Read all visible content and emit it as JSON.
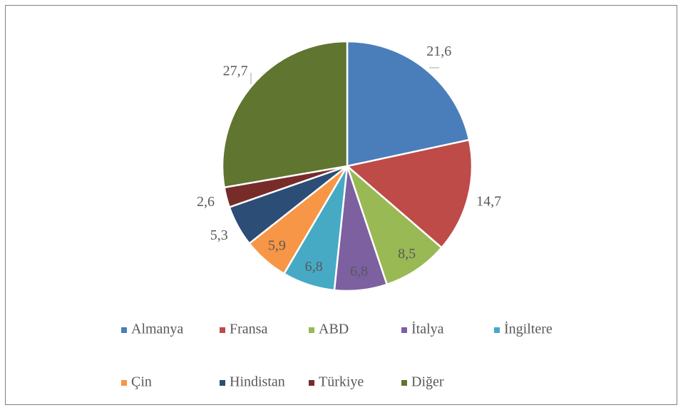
{
  "chart_data": {
    "type": "pie",
    "categories": [
      "Almanya",
      "Fransa",
      "ABD",
      "İtalya",
      "İngiltere",
      "Çin",
      "Hindistan",
      "Türkiye",
      "Diğer"
    ],
    "values": [
      21.6,
      14.7,
      8.5,
      6.8,
      6.8,
      5.9,
      5.3,
      2.6,
      27.7
    ],
    "value_labels": [
      "21,6",
      "14,7",
      "8,5",
      "6,8",
      "6,8",
      "5,9",
      "5,3",
      "2,6",
      "27,7"
    ],
    "colors": [
      "#4a7ebb",
      "#be4b48",
      "#98b954",
      "#7d60a0",
      "#46aac5",
      "#f79646",
      "#2c4d75",
      "#772c2a",
      "#5f7530"
    ],
    "legend": "bottom"
  }
}
